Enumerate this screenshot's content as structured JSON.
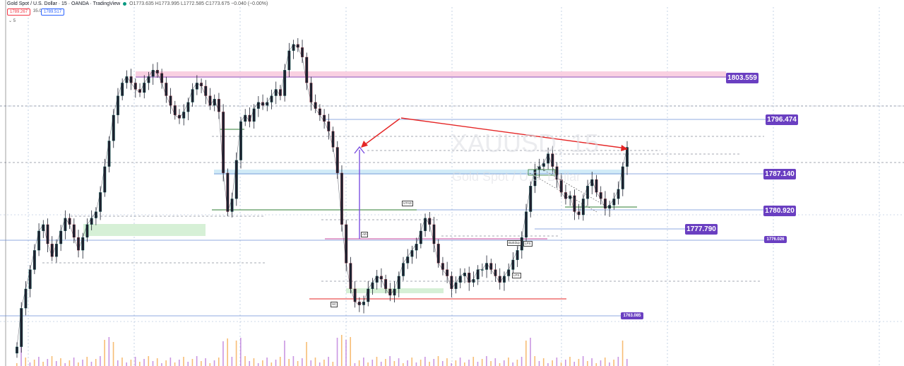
{
  "header": {
    "title": "Gold Spot / U.S. Dollar · 15 · OANDA · TradingView",
    "ohlc": "O1773.635 H1773.995 L1772.585 C1773.675 −0.040 (−0.00%)",
    "sell_price": "1789.267",
    "spread": "35.0",
    "buy_price": "1789.517",
    "sub_indicator": "5"
  },
  "watermark": {
    "symbol": "XAUUSD, 15",
    "description": "Gold Spot / U.S. Dollar"
  },
  "tags": {
    "sc": "SC",
    "ar": "AR",
    "utad": "UTAD",
    "buildup": "BuEdup",
    "lps1": "LPS",
    "lps2": "LPS"
  },
  "price_labels": [
    "1803.559",
    "1796.474",
    "1787.140",
    "1780.920",
    "1777.790",
    "1776.026",
    "1763.085"
  ],
  "colors": {
    "bullish_candle": "#089981",
    "bearish_candle": "#f23645",
    "label_bg": "#6a3fc1",
    "supply_zone": "#f8c8dc",
    "demand_zone": "#d6f0d6",
    "blue_zone": "#cce9f6",
    "trend_arrow": "#e52626",
    "up_arrow": "#7b4fe0"
  },
  "chart_data": {
    "type": "line",
    "symbol": "XAUUSD",
    "interval": "15",
    "y_range": [
      1759.0,
      1813.0
    ],
    "grid": true,
    "series": [
      {
        "values": [
          1760.0,
          1766.0,
          1769.0,
          1772.0,
          1775.0,
          1778.0,
          1779.0,
          1776.0,
          1774.0,
          1776.0,
          1778.0,
          1780.0,
          1779.0,
          1777.0,
          1775.0,
          1777.0,
          1779.0,
          1780.0,
          1781.0,
          1784.0,
          1788.0,
          1792.0,
          1796.0,
          1799.0,
          1801.0,
          1802.0,
          1801.0,
          1800.0,
          1799.5,
          1801.0,
          1802.0,
          1803.0,
          1802.5,
          1801.0,
          1799.0,
          1797.5,
          1796.0,
          1795.5,
          1796.5,
          1798.0,
          1800.0,
          1801.0,
          1800.5,
          1799.0,
          1797.5,
          1798.5,
          1796.5,
          1787.0,
          1781.0,
          1783.0,
          1789.0,
          1795.0,
          1796.0,
          1795.0,
          1797.0,
          1798.0,
          1797.5,
          1798.0,
          1799.0,
          1800.0,
          1799.0,
          1803.0,
          1806.0,
          1807.0,
          1806.5,
          1805.0,
          1801.0,
          1798.0,
          1797.0,
          1796.0,
          1795.0,
          1793.5,
          1791.0,
          1787.0,
          1779.0,
          1773.0,
          1769.0,
          1767.0,
          1766.5,
          1767.0,
          1769.0,
          1770.0,
          1771.0,
          1770.5,
          1769.0,
          1768.0,
          1769.0,
          1771.0,
          1773.0,
          1774.0,
          1775.0,
          1776.0,
          1778.0,
          1780.0,
          1779.0,
          1776.0,
          1773.0,
          1772.0,
          1771.0,
          1769.0,
          1770.0,
          1771.0,
          1771.5,
          1770.0,
          1770.5,
          1772.0,
          1772.0,
          1773.0,
          1772.0,
          1771.0,
          1770.0,
          1771.0,
          1772.0,
          1773.5,
          1775.0,
          1777.0,
          1781.0,
          1785.0,
          1787.5,
          1788.0,
          1788.5,
          1790.0,
          1788.0,
          1786.0,
          1784.0,
          1783.0,
          1783.5,
          1781.0,
          1780.5,
          1783.0,
          1785.0,
          1786.0,
          1784.0,
          1783.0,
          1781.5,
          1782.0,
          1783.0,
          1784.5,
          1788.0,
          1791.0
        ]
      }
    ]
  }
}
